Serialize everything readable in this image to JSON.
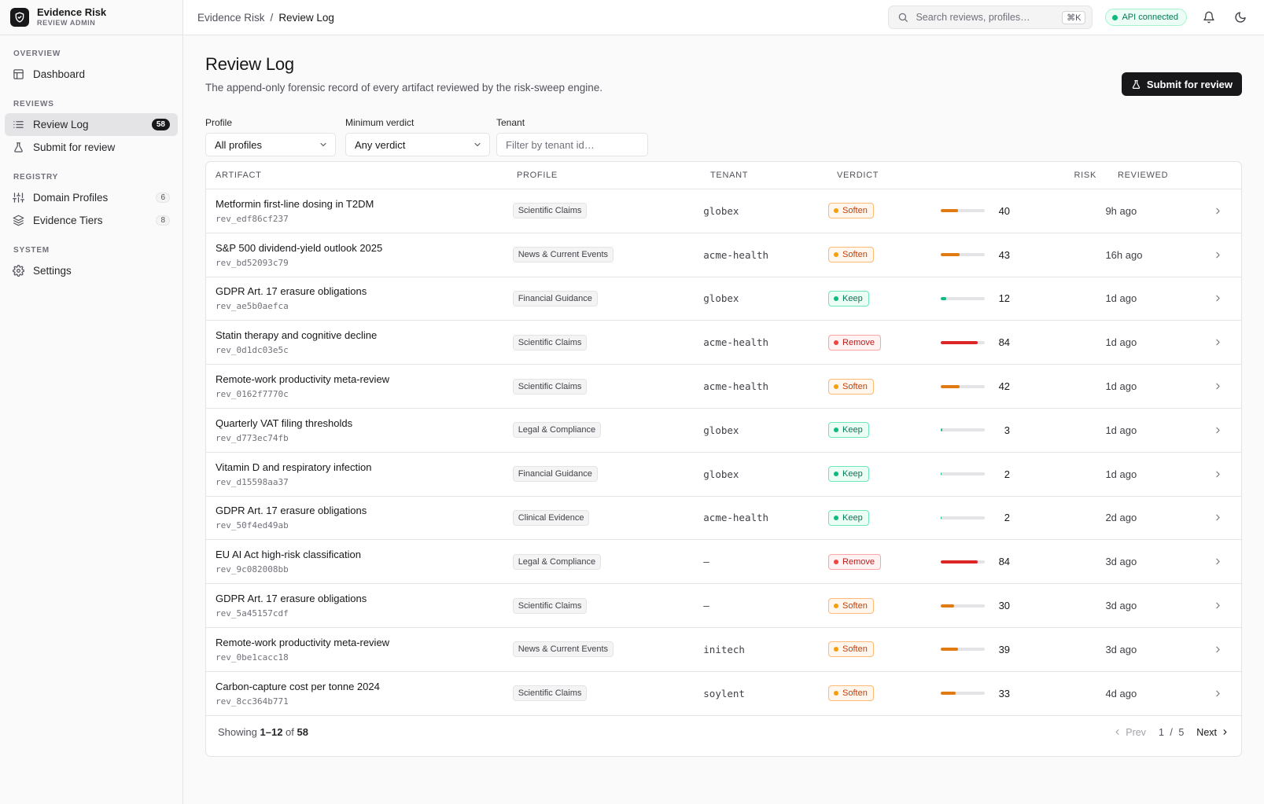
{
  "brand": {
    "title": "Evidence Risk",
    "subtitle": "REVIEW ADMIN"
  },
  "sidebar": {
    "sections": [
      {
        "label": "OVERVIEW"
      },
      {
        "label": "REVIEWS"
      },
      {
        "label": "REGISTRY"
      },
      {
        "label": "SYSTEM"
      }
    ],
    "items": [
      {
        "label": "Dashboard",
        "icon": "layout-icon"
      },
      {
        "label": "Review Log",
        "icon": "list-icon",
        "badge": "58",
        "active": true
      },
      {
        "label": "Submit for review",
        "icon": "flask-icon"
      },
      {
        "label": "Domain Profiles",
        "icon": "sliders-icon",
        "badge": "6"
      },
      {
        "label": "Evidence Tiers",
        "icon": "layers-icon",
        "badge": "8"
      },
      {
        "label": "Settings",
        "icon": "gear-icon"
      }
    ]
  },
  "topbar": {
    "breadcrumb": {
      "root": "Evidence Risk",
      "separator": "/",
      "current": "Review Log"
    },
    "search": {
      "placeholder": "Search reviews, profiles…",
      "shortcut": "⌘K"
    },
    "api_status": "API connected"
  },
  "page": {
    "title": "Review Log",
    "description": "The append-only forensic record of every artifact reviewed by the risk-sweep engine.",
    "primary_action": "Submit for review"
  },
  "filters": {
    "profile": {
      "label": "Profile",
      "value": "All profiles"
    },
    "verdict": {
      "label": "Minimum verdict",
      "value": "Any verdict"
    },
    "tenant": {
      "label": "Tenant",
      "placeholder": "Filter by tenant id…",
      "value": ""
    }
  },
  "table": {
    "columns": {
      "artifact": "ARTIFACT",
      "profile": "PROFILE",
      "tenant": "TENANT",
      "verdict": "VERDICT",
      "risk": "RISK",
      "reviewed": "REVIEWED"
    },
    "rows": [
      {
        "title": "Metformin first-line dosing in T2DM",
        "id": "rev_edf86cf237",
        "profile": "Scientific Claims",
        "tenant": "globex",
        "verdict": "Soften",
        "risk": 40,
        "reviewed": "9h ago"
      },
      {
        "title": "S&P 500 dividend-yield outlook 2025",
        "id": "rev_bd52093c79",
        "profile": "News & Current Events",
        "tenant": "acme-health",
        "verdict": "Soften",
        "risk": 43,
        "reviewed": "16h ago"
      },
      {
        "title": "GDPR Art. 17 erasure obligations",
        "id": "rev_ae5b0aefca",
        "profile": "Financial Guidance",
        "tenant": "globex",
        "verdict": "Keep",
        "risk": 12,
        "reviewed": "1d ago"
      },
      {
        "title": "Statin therapy and cognitive decline",
        "id": "rev_0d1dc03e5c",
        "profile": "Scientific Claims",
        "tenant": "acme-health",
        "verdict": "Remove",
        "risk": 84,
        "reviewed": "1d ago"
      },
      {
        "title": "Remote-work productivity meta-review",
        "id": "rev_0162f7770c",
        "profile": "Scientific Claims",
        "tenant": "acme-health",
        "verdict": "Soften",
        "risk": 42,
        "reviewed": "1d ago"
      },
      {
        "title": "Quarterly VAT filing thresholds",
        "id": "rev_d773ec74fb",
        "profile": "Legal & Compliance",
        "tenant": "globex",
        "verdict": "Keep",
        "risk": 3,
        "reviewed": "1d ago"
      },
      {
        "title": "Vitamin D and respiratory infection",
        "id": "rev_d15598aa37",
        "profile": "Financial Guidance",
        "tenant": "globex",
        "verdict": "Keep",
        "risk": 2,
        "reviewed": "1d ago"
      },
      {
        "title": "GDPR Art. 17 erasure obligations",
        "id": "rev_50f4ed49ab",
        "profile": "Clinical Evidence",
        "tenant": "acme-health",
        "verdict": "Keep",
        "risk": 2,
        "reviewed": "2d ago"
      },
      {
        "title": "EU AI Act high-risk classification",
        "id": "rev_9c082008bb",
        "profile": "Legal & Compliance",
        "tenant": "—",
        "verdict": "Remove",
        "risk": 84,
        "reviewed": "3d ago"
      },
      {
        "title": "GDPR Art. 17 erasure obligations",
        "id": "rev_5a45157cdf",
        "profile": "Scientific Claims",
        "tenant": "—",
        "verdict": "Soften",
        "risk": 30,
        "reviewed": "3d ago"
      },
      {
        "title": "Remote-work productivity meta-review",
        "id": "rev_0be1cacc18",
        "profile": "News & Current Events",
        "tenant": "initech",
        "verdict": "Soften",
        "risk": 39,
        "reviewed": "3d ago"
      },
      {
        "title": "Carbon-capture cost per tonne 2024",
        "id": "rev_8cc364b771",
        "profile": "Scientific Claims",
        "tenant": "soylent",
        "verdict": "Soften",
        "risk": 33,
        "reviewed": "4d ago"
      }
    ],
    "footer": {
      "showing_prefix": "Showing",
      "range": "1–12",
      "of_label": "of",
      "total": "58",
      "prev_label": "Prev",
      "page": "1",
      "page_sep": "/",
      "pages": "5",
      "next_label": "Next"
    }
  },
  "colors": {
    "soften": {
      "fg": "#c2410c",
      "bg": "#fff7ed",
      "border": "#fdba74",
      "dot": "#f59e0b",
      "bar": "#e07b12"
    },
    "keep": {
      "fg": "#047857",
      "bg": "#ecfdf5",
      "border": "#6ee7b7",
      "dot": "#10b981",
      "bar": "#10b981"
    },
    "remove": {
      "fg": "#b91c1c",
      "bg": "#fef2f2",
      "border": "#fca5a5",
      "dot": "#ef4444",
      "bar": "#dc2626"
    }
  }
}
